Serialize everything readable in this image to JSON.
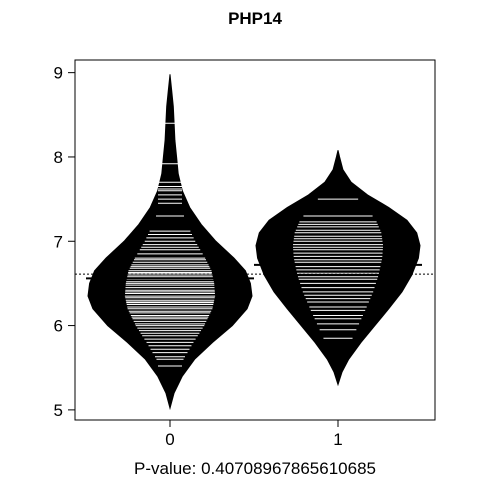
{
  "chart_data": {
    "type": "beanplot",
    "title": "PHP14",
    "xlabel": "P-value: 0.40708967865610685",
    "ylabel": "",
    "categories": [
      "0",
      "1"
    ],
    "yticks": [
      5,
      6,
      7,
      8,
      9
    ],
    "ylim": [
      4.88,
      9.15
    ],
    "overall_mean": 6.61,
    "series": [
      {
        "name": "0",
        "mean": 6.56,
        "range": [
          5.02,
          8.98
        ],
        "density": [
          [
            5.02,
            0.0
          ],
          [
            5.2,
            0.05
          ],
          [
            5.4,
            0.15
          ],
          [
            5.6,
            0.3
          ],
          [
            5.8,
            0.52
          ],
          [
            6.0,
            0.76
          ],
          [
            6.2,
            0.94
          ],
          [
            6.35,
            1.0
          ],
          [
            6.5,
            0.98
          ],
          [
            6.65,
            0.92
          ],
          [
            6.8,
            0.78
          ],
          [
            7.0,
            0.56
          ],
          [
            7.2,
            0.38
          ],
          [
            7.4,
            0.24
          ],
          [
            7.6,
            0.15
          ],
          [
            7.8,
            0.1
          ],
          [
            8.0,
            0.08
          ],
          [
            8.2,
            0.06
          ],
          [
            8.4,
            0.05
          ],
          [
            8.6,
            0.04
          ],
          [
            8.8,
            0.02
          ],
          [
            8.98,
            0.0
          ]
        ],
        "observations": [
          5.52,
          5.6,
          5.63,
          5.68,
          5.72,
          5.76,
          5.8,
          5.84,
          5.88,
          5.91,
          5.94,
          5.97,
          6.0,
          6.02,
          6.05,
          6.08,
          6.1,
          6.12,
          6.15,
          6.17,
          6.2,
          6.22,
          6.25,
          6.27,
          6.28,
          6.3,
          6.33,
          6.35,
          6.38,
          6.4,
          6.42,
          6.45,
          6.48,
          6.5,
          6.52,
          6.55,
          6.58,
          6.6,
          6.62,
          6.63,
          6.65,
          6.68,
          6.7,
          6.72,
          6.75,
          6.78,
          6.8,
          6.85,
          6.9,
          6.93,
          6.96,
          7.0,
          7.04,
          7.08,
          7.12,
          7.3,
          7.45,
          7.5,
          7.55,
          7.6,
          7.62,
          7.65,
          7.7,
          7.92,
          8.4
        ]
      },
      {
        "name": "1",
        "mean": 6.72,
        "range": [
          5.3,
          8.08
        ],
        "density": [
          [
            5.3,
            0.0
          ],
          [
            5.45,
            0.05
          ],
          [
            5.6,
            0.13
          ],
          [
            5.8,
            0.28
          ],
          [
            6.0,
            0.45
          ],
          [
            6.2,
            0.62
          ],
          [
            6.4,
            0.78
          ],
          [
            6.6,
            0.9
          ],
          [
            6.8,
            0.98
          ],
          [
            6.95,
            1.0
          ],
          [
            7.1,
            0.96
          ],
          [
            7.25,
            0.84
          ],
          [
            7.4,
            0.62
          ],
          [
            7.55,
            0.36
          ],
          [
            7.7,
            0.16
          ],
          [
            7.85,
            0.06
          ],
          [
            8.0,
            0.02
          ],
          [
            8.08,
            0.0
          ]
        ],
        "observations": [
          5.85,
          5.95,
          6.02,
          6.08,
          6.12,
          6.18,
          6.22,
          6.28,
          6.32,
          6.36,
          6.4,
          6.45,
          6.5,
          6.55,
          6.58,
          6.62,
          6.66,
          6.7,
          6.75,
          6.78,
          6.82,
          6.86,
          6.9,
          6.93,
          6.96,
          7.0,
          7.03,
          7.06,
          7.1,
          7.13,
          7.17,
          7.2,
          7.23,
          7.3,
          7.5
        ]
      }
    ]
  }
}
